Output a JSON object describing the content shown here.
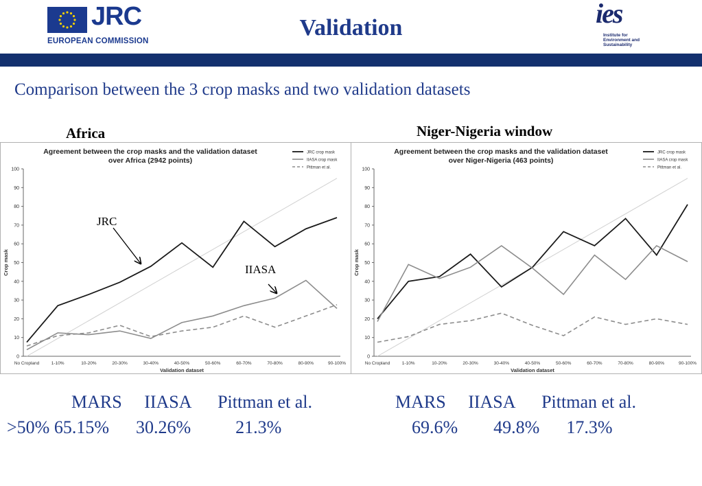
{
  "header": {
    "title": "Validation",
    "jrc_logo": "JRC",
    "jrc_org": "EUROPEAN COMMISSION",
    "ies_logo": "ies",
    "ies_sub": [
      "Institute for",
      "Environment and",
      "Sustainability"
    ],
    "band_color": "#13306e"
  },
  "subtitle": "Comparison between the 3 crop masks and two validation datasets",
  "regions": [
    "Africa",
    "Niger-Nigeria window"
  ],
  "chart_data": [
    {
      "type": "line",
      "title": [
        "Agreement between the crop masks and the validation dataset",
        "over Africa (2942 points)"
      ],
      "xlabel": "Validation dataset",
      "ylabel": "Crop mask",
      "ylim": [
        0,
        100
      ],
      "yticks": [
        0,
        10,
        20,
        30,
        40,
        50,
        60,
        70,
        80,
        90,
        100
      ],
      "categories": [
        "No Cropland",
        "1-10%",
        "10-20%",
        "20-30%",
        "30-40%",
        "40-50%",
        "50-60%",
        "60-70%",
        "70-80%",
        "80-90%",
        "90-100%"
      ],
      "legend_position": "top-right",
      "series": [
        {
          "name": "JRC crop mask",
          "values": [
            7.5,
            27,
            33,
            39.5,
            48,
            60.5,
            47.5,
            72,
            58.5,
            68,
            74
          ],
          "color": "#1a1a1a",
          "dash": "solid"
        },
        {
          "name": "IIASA crop mask",
          "values": [
            3.5,
            12.5,
            11.5,
            13.5,
            9.5,
            18,
            21.5,
            27,
            31,
            40.5,
            25.5
          ],
          "color": "#8c8c8c",
          "dash": "solid"
        },
        {
          "name": "Pittman et al.",
          "values": [
            5.5,
            11,
            12.5,
            16.5,
            10.5,
            13.5,
            15.5,
            21.5,
            15.5,
            21.5,
            27.5
          ],
          "color": "#8c8c8c",
          "dash": "dashed"
        }
      ],
      "reference_line": {
        "from": [
          0,
          0
        ],
        "to": [
          10,
          95
        ],
        "color": "#d0d0d0"
      },
      "annotations": [
        "JRC",
        "IIASA"
      ]
    },
    {
      "type": "line",
      "title": [
        "Agreement between the crop masks and the validation dataset",
        "over Niger-Nigeria (463 points)"
      ],
      "xlabel": "Validation dataset",
      "ylabel": "Crop mask",
      "ylim": [
        0,
        100
      ],
      "yticks": [
        0,
        10,
        20,
        30,
        40,
        50,
        60,
        70,
        80,
        90,
        100
      ],
      "categories": [
        "No Cropland",
        "1-10%",
        "10-20%",
        "20-30%",
        "30-40%",
        "40-50%",
        "50-60%",
        "60-70%",
        "70-80%",
        "80-90%",
        "90-100%"
      ],
      "legend_position": "top-right",
      "series": [
        {
          "name": "JRC crop mask",
          "values": [
            20,
            40,
            42.5,
            54.5,
            37,
            47.5,
            66.5,
            59,
            73.5,
            54,
            81
          ],
          "color": "#1a1a1a",
          "dash": "solid"
        },
        {
          "name": "IIASA crop mask",
          "values": [
            18.5,
            49,
            41.5,
            47.5,
            59,
            47,
            33,
            54,
            41,
            59,
            50.5
          ],
          "color": "#8c8c8c",
          "dash": "solid"
        },
        {
          "name": "Pittman et al.",
          "values": [
            7.5,
            10.5,
            17,
            19,
            23,
            16.5,
            11,
            21,
            17,
            20,
            17
          ],
          "color": "#8c8c8c",
          "dash": "dashed"
        }
      ],
      "reference_line": {
        "from": [
          0,
          0
        ],
        "to": [
          10,
          95
        ],
        "color": "#d0d0d0"
      },
      "annotations": []
    }
  ],
  "stats": {
    "header_row_left": "MARS     IIASA      Pittman et al.",
    "value_row_left": ">50% 65.15%      30.26%          21.3%",
    "header_row_right": "MARS     IIASA      Pittman et al.",
    "value_row_right": "69.6%        49.8%      17.3%"
  }
}
